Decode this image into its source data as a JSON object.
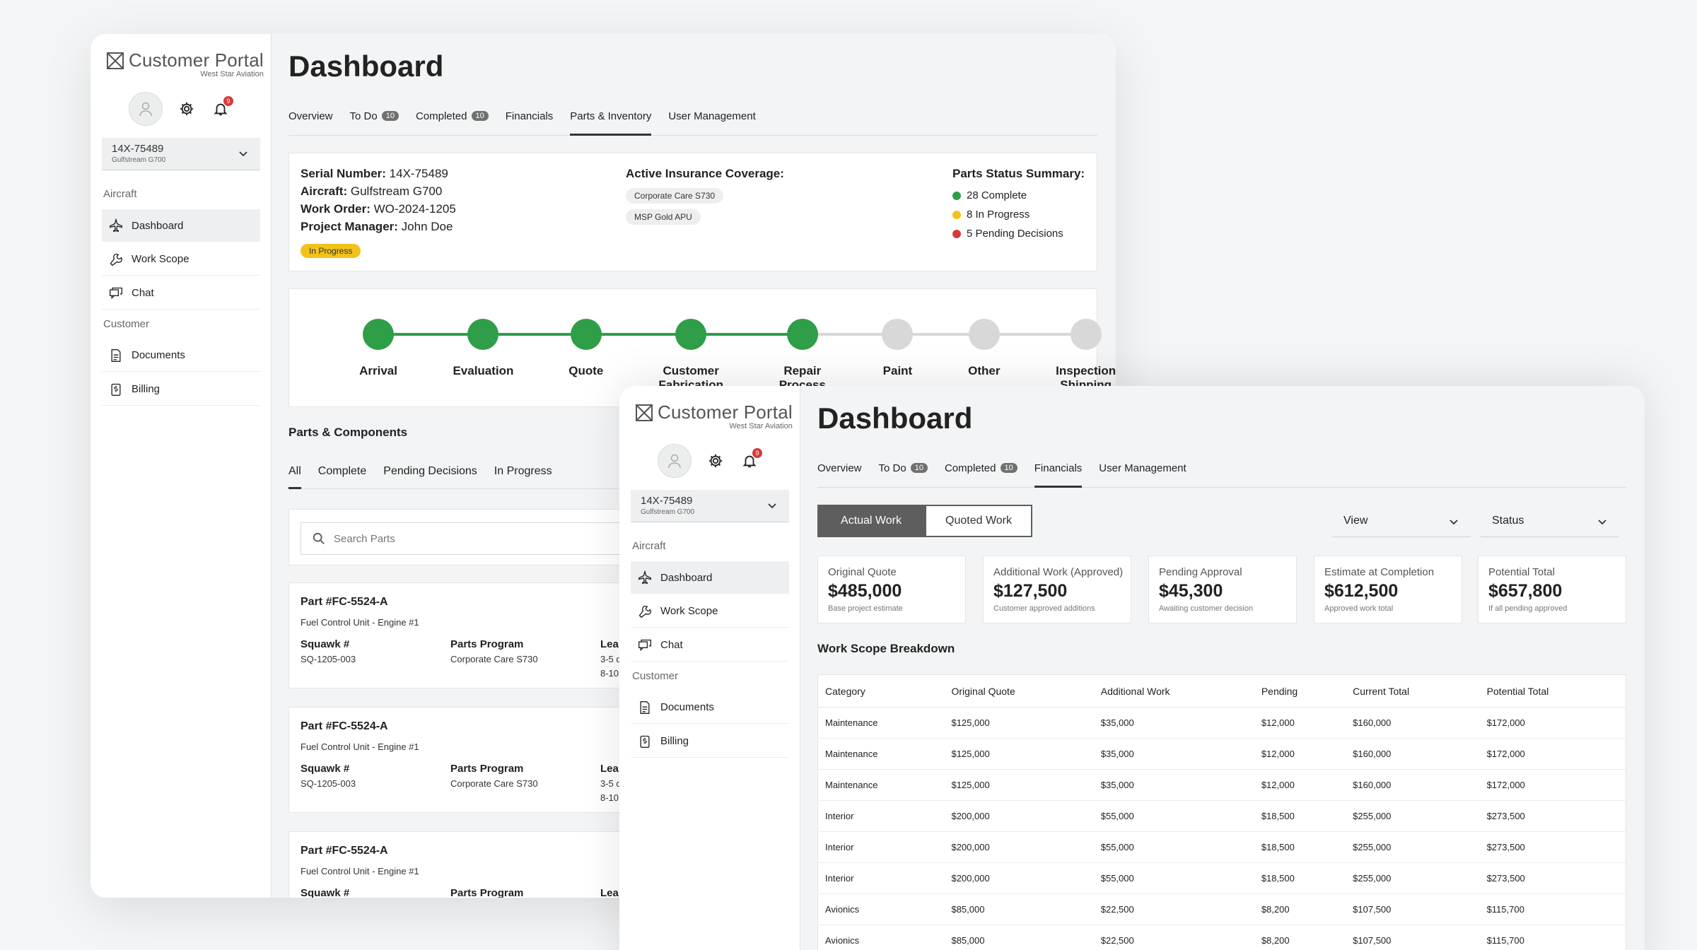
{
  "brand": {
    "title": "Customer Portal",
    "subtitle": "West Star Aviation"
  },
  "notifications": {
    "count": "9"
  },
  "aircraft": {
    "serial": "14X-75489",
    "model": "Gulfstream G700"
  },
  "sidebar": {
    "section_aircraft": "Aircraft",
    "section_customer": "Customer",
    "items": [
      {
        "label": "Dashboard",
        "icon": "plane-icon"
      },
      {
        "label": "Work Scope",
        "icon": "wrench-icon"
      },
      {
        "label": "Chat",
        "icon": "chat-icon"
      },
      {
        "label": "Documents",
        "icon": "document-icon"
      },
      {
        "label": "Billing",
        "icon": "billing-icon"
      }
    ]
  },
  "page_title": "Dashboard",
  "tabs_win1": [
    {
      "label": "Overview"
    },
    {
      "label": "To Do",
      "count": "10"
    },
    {
      "label": "Completed",
      "count": "10"
    },
    {
      "label": "Financials"
    },
    {
      "label": "Parts & Inventory",
      "active": true
    },
    {
      "label": "User Management"
    }
  ],
  "tabs_win2": [
    {
      "label": "Overview"
    },
    {
      "label": "To Do",
      "count": "10"
    },
    {
      "label": "Completed",
      "count": "10"
    },
    {
      "label": "Financials",
      "active": true
    },
    {
      "label": "User Management"
    }
  ],
  "info": {
    "serial_label": "Serial Number:",
    "serial_value": "14X-75489",
    "aircraft_label": "Aircraft:",
    "aircraft_value": "Gulfstream G700",
    "work_order_label": "Work Order:",
    "work_order_value": "WO-2024-1205",
    "pm_label": "Project Manager:",
    "pm_value": "John Doe",
    "status": "In Progress",
    "coverage_title": "Active Insurance Coverage:",
    "coverage": [
      "Corporate Care S730",
      "MSP Gold APU"
    ],
    "parts_title": "Parts Status Summary:",
    "parts_status": [
      {
        "text": "28 Complete",
        "color": "#2e9e48"
      },
      {
        "text": "8 In Progress",
        "color": "#f2c21b"
      },
      {
        "text": "5 Pending Decisions",
        "color": "#d63a3a"
      }
    ]
  },
  "timeline": {
    "done_color": "#2e9e48",
    "todo_color": "#d8d8d8",
    "steps": [
      {
        "label": "Arrival",
        "done": true
      },
      {
        "label": "Evaluation",
        "done": true
      },
      {
        "label": "Quote",
        "done": true
      },
      {
        "label": "Customer Fabrication",
        "done": true
      },
      {
        "label": "Repair Process",
        "done": true
      },
      {
        "label": "Paint",
        "done": false
      },
      {
        "label": "Other",
        "done": false
      },
      {
        "label": "Inspection Shipping",
        "done": false
      }
    ]
  },
  "parts": {
    "title": "Parts & Components",
    "filters": [
      "All",
      "Complete",
      "Pending Decisions",
      "In Progress"
    ],
    "search_placeholder": "Search Parts",
    "squawk_label": "Squawk #",
    "program_label": "Parts Program",
    "lead_label": "Lea",
    "items": [
      {
        "part": "Part #FC-5524-A",
        "desc": "Fuel Control Unit - Engine #1",
        "squawk": "SQ-1205-003",
        "program": "Corporate Care S730",
        "lead1": "3-5 d",
        "lead2": "8-10"
      },
      {
        "part": "Part #FC-5524-A",
        "desc": "Fuel Control Unit - Engine #1",
        "squawk": "SQ-1205-003",
        "program": "Corporate Care S730",
        "lead1": "3-5 d",
        "lead2": "8-10"
      },
      {
        "part": "Part #FC-5524-A",
        "desc": "Fuel Control Unit - Engine #1",
        "squawk": "",
        "program": "",
        "lead1": "",
        "lead2": ""
      }
    ]
  },
  "financials": {
    "toggle": {
      "actual": "Actual Work",
      "quoted": "Quoted Work"
    },
    "view_label": "View",
    "status_label": "Status",
    "kpis": [
      {
        "label": "Original Quote",
        "value": "$485,000",
        "sub": "Base project estimate"
      },
      {
        "label": "Additional Work (Approved)",
        "value": "$127,500",
        "sub": "Customer approved additions"
      },
      {
        "label": "Pending Approval",
        "value": "$45,300",
        "sub": "Awaiting customer decision"
      },
      {
        "label": "Estimate at Completion",
        "value": "$612,500",
        "sub": "Approved work total"
      },
      {
        "label": "Potential Total",
        "value": "$657,800",
        "sub": "If all pending approved"
      }
    ],
    "breakdown_title": "Work Scope Breakdown",
    "columns": [
      "Category",
      "Original Quote",
      "Additional Work",
      "Pending",
      "Current Total",
      "Potential Total"
    ],
    "rows": [
      [
        "Maintenance",
        "$125,000",
        "$35,000",
        "$12,000",
        "$160,000",
        "$172,000"
      ],
      [
        "Maintenance",
        "$125,000",
        "$35,000",
        "$12,000",
        "$160,000",
        "$172,000"
      ],
      [
        "Maintenance",
        "$125,000",
        "$35,000",
        "$12,000",
        "$160,000",
        "$172,000"
      ],
      [
        "Interior",
        "$200,000",
        "$55,000",
        "$18,500",
        "$255,000",
        "$273,500"
      ],
      [
        "Interior",
        "$200,000",
        "$55,000",
        "$18,500",
        "$255,000",
        "$273,500"
      ],
      [
        "Interior",
        "$200,000",
        "$55,000",
        "$18,500",
        "$255,000",
        "$273,500"
      ],
      [
        "Avionics",
        "$85,000",
        "$22,500",
        "$8,200",
        "$107,500",
        "$115,700"
      ],
      [
        "Avionics",
        "$85,000",
        "$22,500",
        "$8,200",
        "$107,500",
        "$115,700"
      ]
    ]
  }
}
